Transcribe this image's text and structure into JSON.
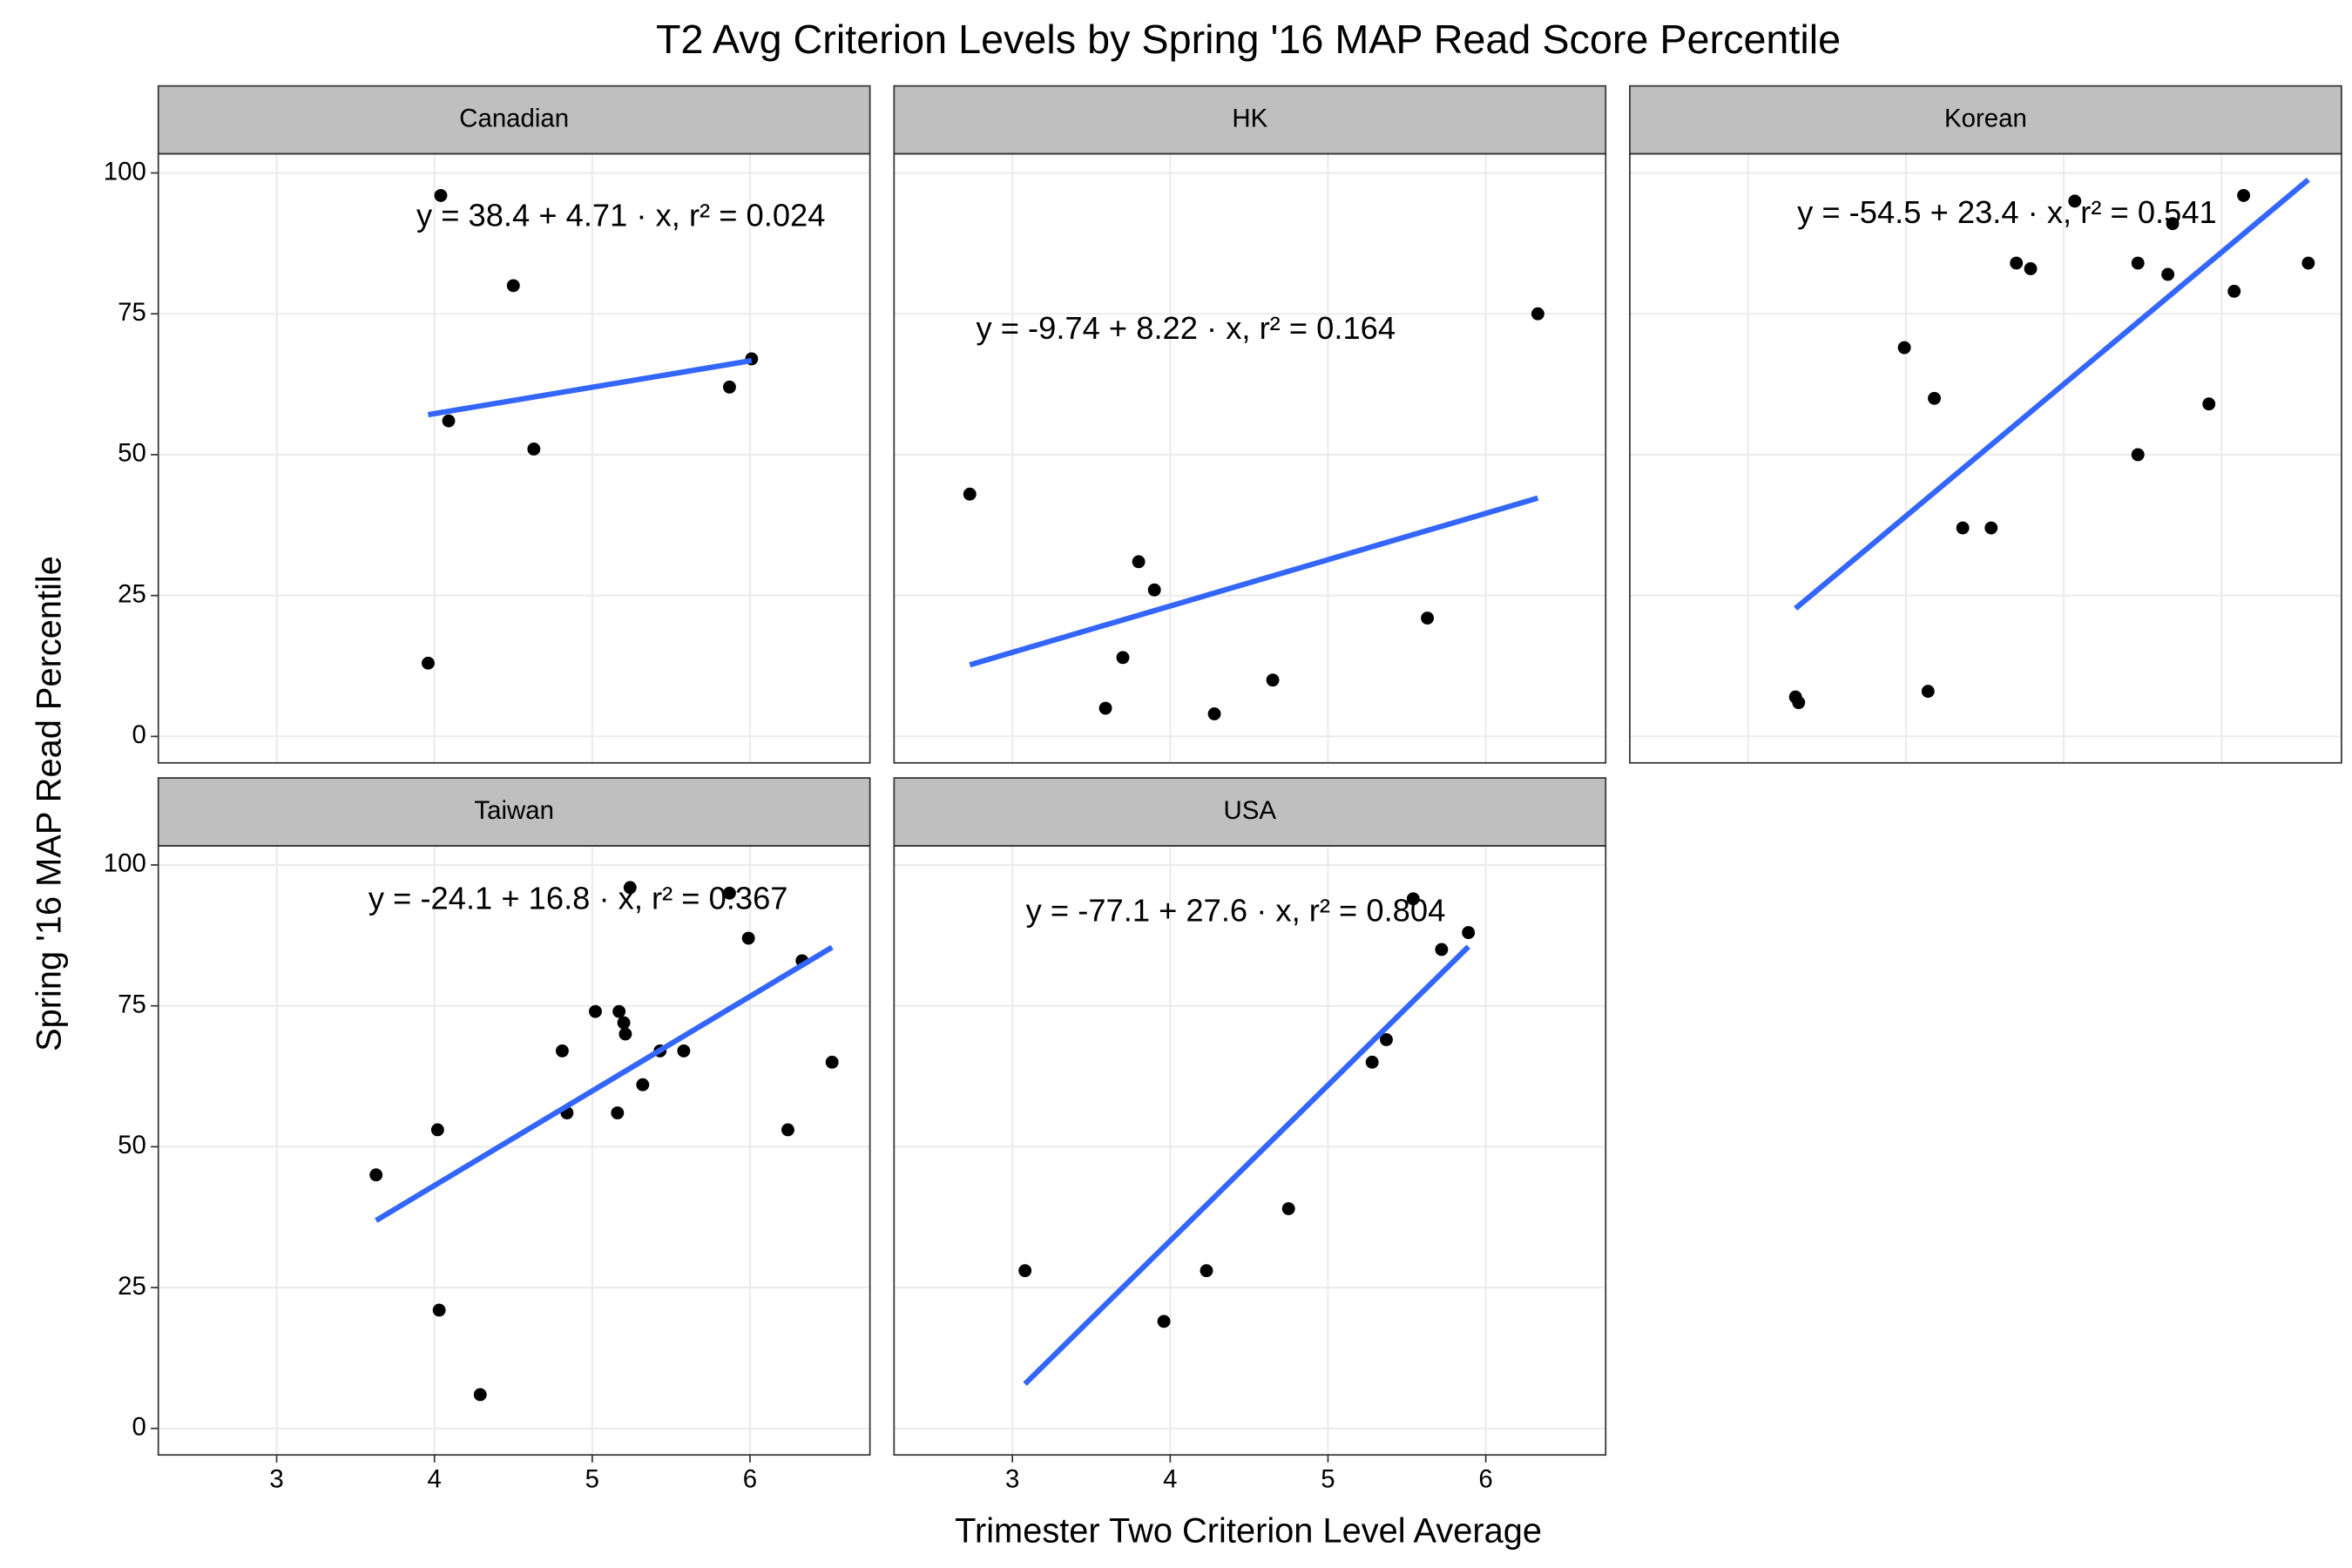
{
  "chart_data": {
    "type": "scatter",
    "title": "T2 Avg Criterion Levels by Spring '16 MAP Read Score Percentile",
    "xlabel": "Trimester Two Criterion Level Average",
    "ylabel": "Spring '16 MAP Read Percentile",
    "xlim": [
      2.25,
      6.76
    ],
    "ylim": [
      -4.7,
      103.4
    ],
    "xticks": [
      3,
      4,
      5,
      6
    ],
    "yticks": [
      0,
      25,
      50,
      75,
      100
    ],
    "grid": true,
    "point_color": "#000000",
    "line_color": "#3366ff",
    "panels": [
      {
        "name": "Canadian",
        "x": [
          4.04,
          4.5,
          4.09,
          4.63,
          5.87,
          6.01,
          3.96
        ],
        "y": [
          96,
          80,
          56,
          51,
          62,
          67,
          13
        ],
        "fit": {
          "x": [
            3.96,
            6.01
          ],
          "y": [
            57.1,
            66.7
          ]
        },
        "annotation": "y = 38.4 + 4.71 · x,  r² = 0.024"
      },
      {
        "name": "HK",
        "x": [
          2.73,
          3.8,
          3.9,
          3.7,
          3.59,
          4.28,
          4.65,
          5.63,
          6.33
        ],
        "y": [
          43,
          31,
          26,
          14,
          5,
          4,
          10,
          21,
          75
        ],
        "fit": {
          "x": [
            2.73,
            6.33
          ],
          "y": [
            12.7,
            42.3
          ]
        },
        "annotation": "y = -9.74 + 8.22 · x,  r² = 0.164"
      },
      {
        "name": "Korean",
        "x": [
          3.3,
          3.32,
          3.99,
          4.14,
          4.18,
          4.36,
          4.54,
          4.7,
          4.79,
          5.07,
          5.47,
          5.47,
          5.66,
          5.69,
          5.92,
          6.08,
          6.14,
          6.55
        ],
        "y": [
          7,
          6,
          69,
          8,
          60,
          37,
          37,
          84,
          83,
          95,
          84,
          50,
          82,
          91,
          59,
          79,
          96,
          84
        ],
        "fit": {
          "x": [
            3.3,
            6.55
          ],
          "y": [
            22.7,
            98.8
          ]
        },
        "annotation": "y = -54.5 + 23.4 · x,  r² = 0.541"
      },
      {
        "name": "Taiwan",
        "x": [
          3.63,
          4.02,
          4.03,
          4.29,
          4.81,
          4.84,
          5.02,
          5.16,
          5.17,
          5.2,
          5.21,
          5.24,
          5.32,
          5.43,
          5.58,
          5.87,
          5.99,
          6.24,
          6.33,
          6.52
        ],
        "y": [
          45,
          53,
          21,
          6,
          67,
          56,
          74,
          56,
          74,
          72,
          70,
          96,
          61,
          67,
          67,
          95,
          87,
          53,
          83,
          65
        ],
        "fit": {
          "x": [
            3.63,
            6.52
          ],
          "y": [
            36.9,
            85.4
          ]
        },
        "annotation": "y = -24.1 + 16.8 · x,  r² = 0.367"
      },
      {
        "name": "USA",
        "x": [
          3.08,
          3.96,
          4.23,
          4.75,
          5.28,
          5.37,
          5.54,
          5.72,
          5.89
        ],
        "y": [
          28,
          19,
          28,
          39,
          65,
          69,
          94,
          85,
          88
        ],
        "fit": {
          "x": [
            3.08,
            5.89
          ],
          "y": [
            7.9,
            85.5
          ]
        },
        "annotation": "y = -77.1 + 27.6 · x,  r² = 0.804"
      }
    ]
  }
}
